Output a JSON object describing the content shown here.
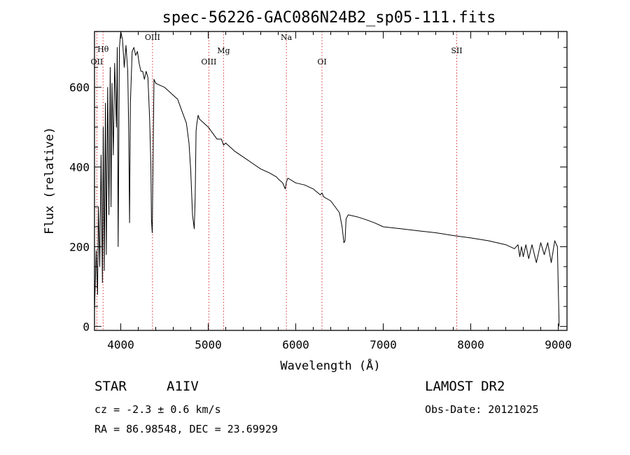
{
  "chart_data": {
    "type": "line",
    "title": "spec-56226-GAC086N24B2_sp05-111.fits",
    "xlabel": "Wavelength (Å)",
    "ylabel": "Flux (relative)",
    "xlim": [
      3700,
      9100
    ],
    "ylim": [
      -10,
      740
    ],
    "xticks": [
      4000,
      5000,
      6000,
      7000,
      8000,
      9000
    ],
    "yticks": [
      0,
      200,
      400,
      600
    ],
    "grid": false,
    "line_colors": {
      "spectrum": "#000000",
      "lines": "#cc0000"
    },
    "spectral_lines": [
      {
        "name": "OII",
        "wavelength": 3727
      },
      {
        "name": "Hθ",
        "wavelength": 3798
      },
      {
        "name": "OIII",
        "wavelength": 4363
      },
      {
        "name": "OIII",
        "wavelength": 5007
      },
      {
        "name": "Mg",
        "wavelength": 5175
      },
      {
        "name": "Na",
        "wavelength": 5893
      },
      {
        "name": "OI",
        "wavelength": 6300
      },
      {
        "name": "SII",
        "wavelength": 7840
      }
    ],
    "series": [
      {
        "x": [
          3700,
          3720,
          3735,
          3745,
          3760,
          3775,
          3790,
          3800,
          3812,
          3825,
          3835,
          3850,
          3865,
          3880,
          3889,
          3900,
          3915,
          3930,
          3950,
          3960,
          3970,
          3985,
          4000,
          4020,
          4040,
          4060,
          4080,
          4090,
          4101,
          4110,
          4130,
          4150,
          4170,
          4190,
          4210,
          4230,
          4250,
          4270,
          4290,
          4310,
          4330,
          4345,
          4350,
          4360,
          4365,
          4380,
          4400,
          4450,
          4500,
          4550,
          4600,
          4650,
          4700,
          4750,
          4780,
          4800,
          4820,
          4840,
          4850,
          4861,
          4870,
          4885,
          4900,
          4950,
          5000,
          5050,
          5100,
          5150,
          5175,
          5200,
          5300,
          5400,
          5500,
          5600,
          5700,
          5780,
          5800,
          5850,
          5880,
          5893,
          5910,
          6000,
          6100,
          6200,
          6280,
          6300,
          6320,
          6400,
          6450,
          6500,
          6530,
          6550,
          6563,
          6575,
          6600,
          6700,
          6800,
          6900,
          7000,
          7200,
          7400,
          7600,
          7800,
          8000,
          8200,
          8400,
          8500,
          8540,
          8560,
          8580,
          8600,
          8630,
          8662,
          8700,
          8750,
          8800,
          8840,
          8880,
          8920,
          8960,
          8990,
          9000,
          9010
        ],
        "y": [
          40,
          190,
          80,
          300,
          150,
          430,
          110,
          500,
          140,
          560,
          180,
          600,
          280,
          650,
          300,
          610,
          430,
          660,
          500,
          700,
          200,
          700,
          740,
          720,
          650,
          705,
          640,
          500,
          260,
          560,
          690,
          700,
          680,
          690,
          660,
          640,
          640,
          620,
          640,
          625,
          520,
          400,
          270,
          235,
          330,
          620,
          610,
          605,
          600,
          590,
          580,
          570,
          540,
          510,
          460,
          390,
          280,
          245,
          320,
          490,
          510,
          530,
          520,
          510,
          500,
          485,
          470,
          470,
          455,
          460,
          440,
          425,
          410,
          395,
          385,
          375,
          370,
          360,
          345,
          362,
          372,
          360,
          355,
          345,
          330,
          335,
          325,
          315,
          300,
          285,
          250,
          210,
          215,
          270,
          280,
          275,
          268,
          260,
          250,
          245,
          240,
          235,
          228,
          222,
          215,
          205,
          195,
          205,
          175,
          200,
          175,
          205,
          170,
          205,
          160,
          210,
          180,
          210,
          160,
          215,
          200,
          100,
          0
        ]
      }
    ]
  },
  "footer": {
    "left_line1_a": "STAR",
    "left_line1_b": "A1IV",
    "left_line2": "cz = -2.3 ± 0.6 km/s",
    "left_line3": "RA =  86.98548, DEC =  23.69929",
    "right_line1": "LAMOST DR2",
    "right_line2": "Obs-Date: 20121025"
  }
}
